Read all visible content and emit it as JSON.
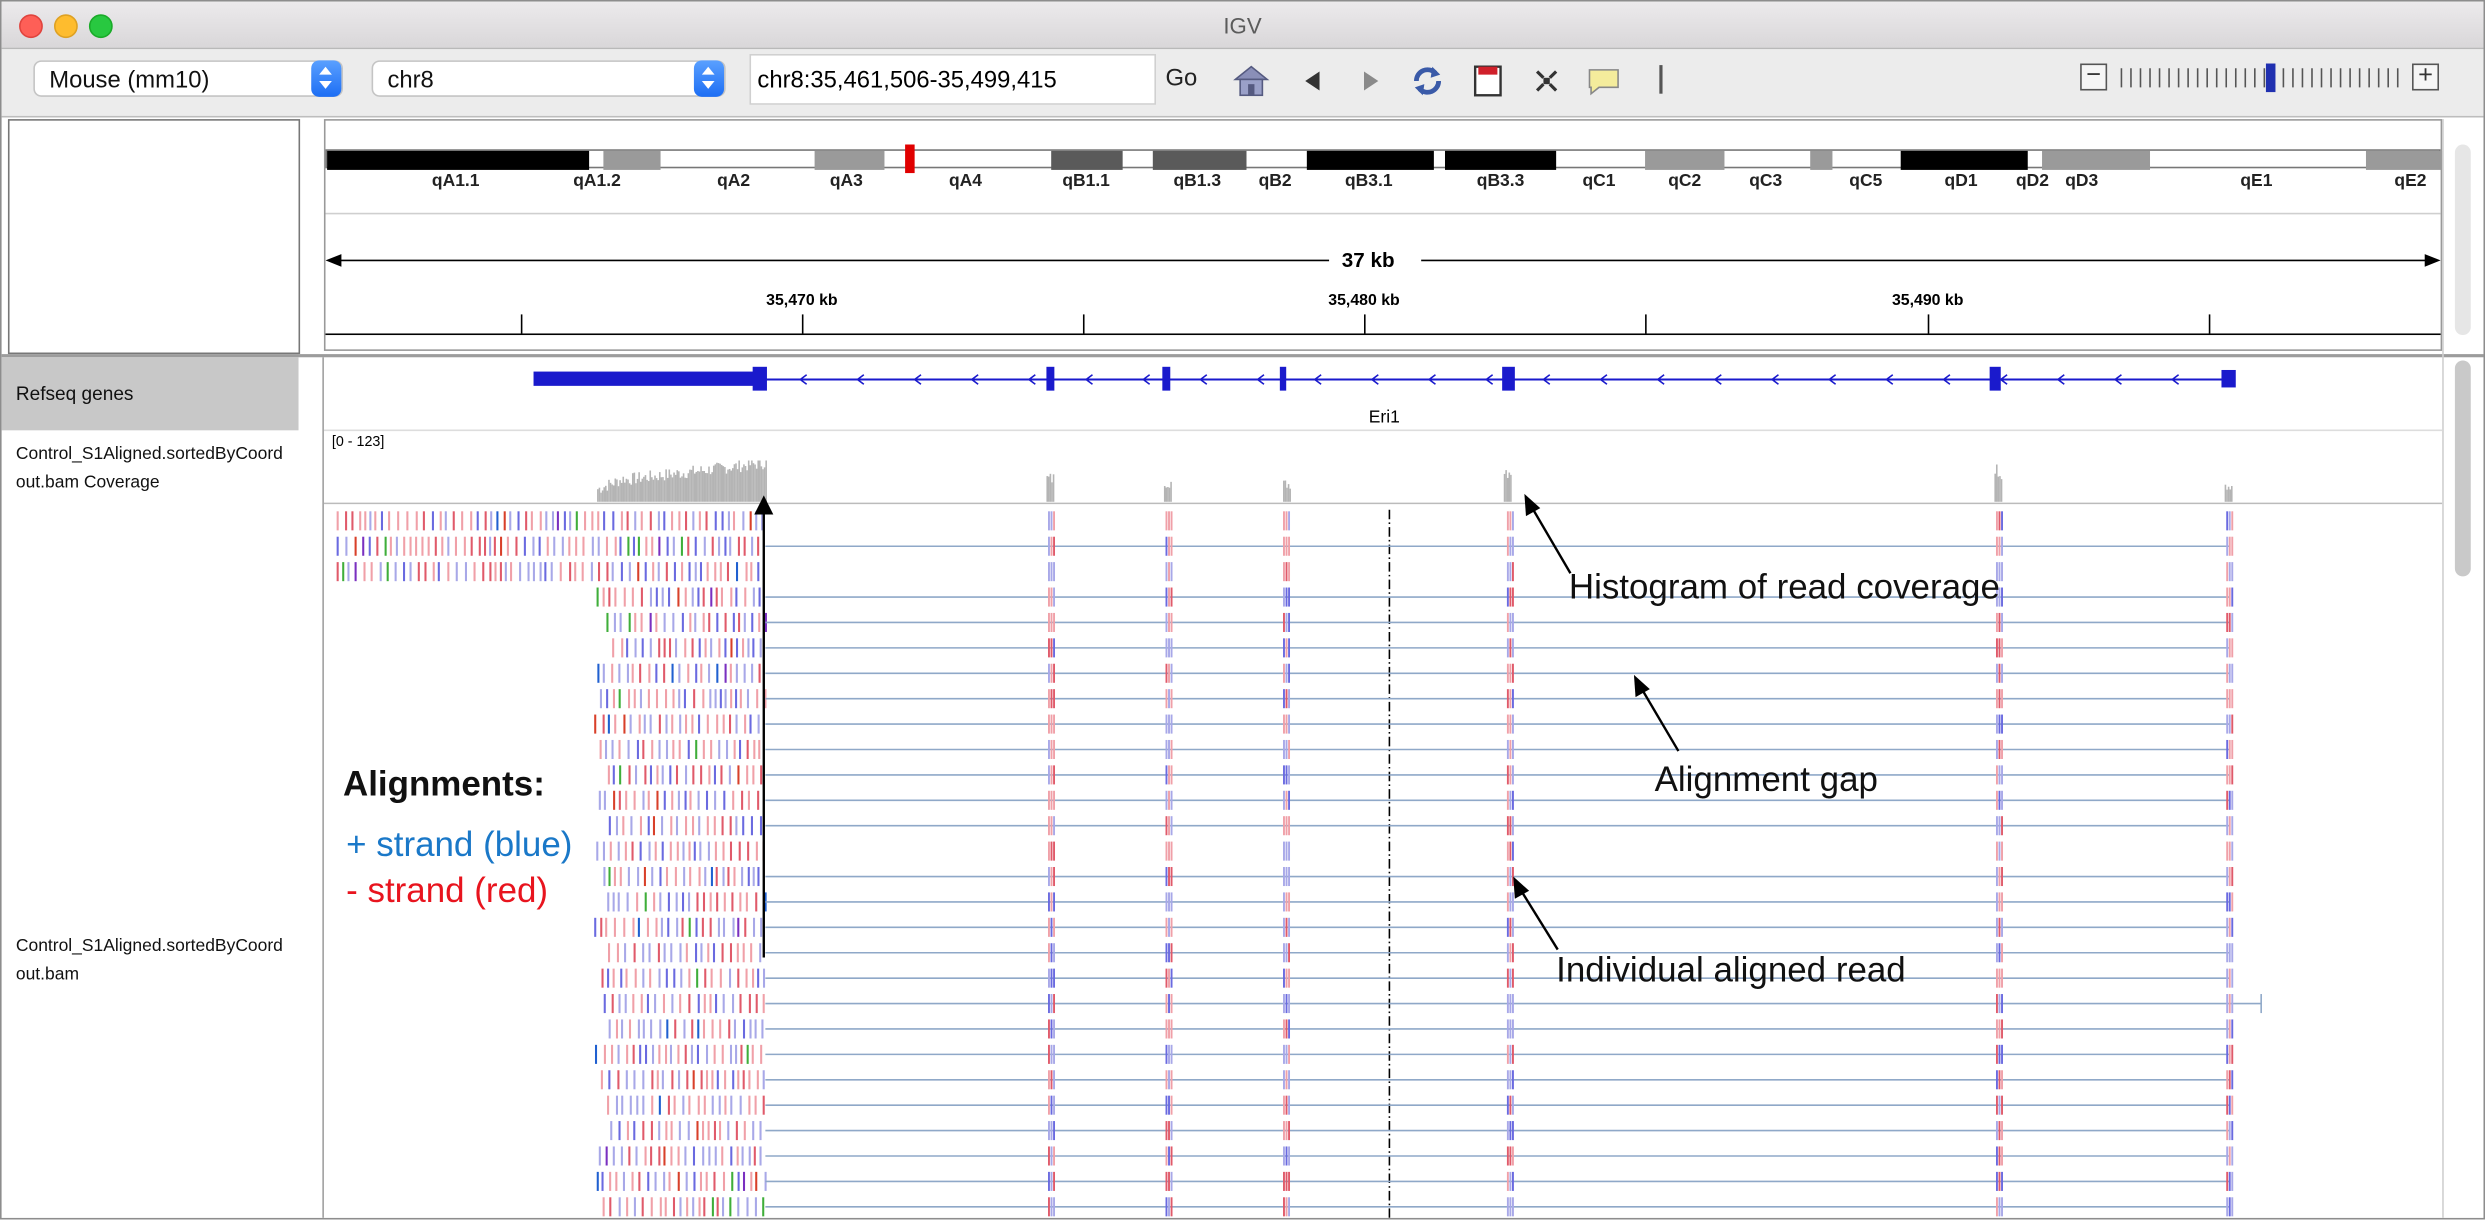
{
  "window": {
    "title": "IGV"
  },
  "toolbar": {
    "genome": "Mouse (mm10)",
    "chromosome": "chr8",
    "locus": "chr8:35,461,506-35,499,415",
    "go_label": "Go",
    "icons": [
      "home-icon",
      "back-arrow-icon",
      "forward-arrow-icon",
      "refresh-icon",
      "roi-icon",
      "resize-icon",
      "popup-text-icon"
    ],
    "zoom_out": "−",
    "zoom_in": "+"
  },
  "ideogram": {
    "bands": [
      "qA1.1",
      "qA1.2",
      "qA2",
      "qA3",
      "qA4",
      "qB1.1",
      "qB1.3",
      "qB2",
      "qB3.1",
      "qB3.3",
      "qC1",
      "qC2",
      "qC3",
      "qC5",
      "qD1",
      "qD2",
      "qD3",
      "qE1",
      "qE2"
    ]
  },
  "ruler": {
    "span": "37 kb",
    "ticks": [
      "35,470 kb",
      "35,480 kb",
      "35,490 kb"
    ]
  },
  "tracks": {
    "refseq_name": "Refseq genes",
    "gene_name": "Eri1",
    "coverage_name_line1": "Control_S1Aligned.sortedByCoord",
    "coverage_name_line2": "out.bam Coverage",
    "coverage_range": "[0 - 123]",
    "bam_name_line1": "Control_S1Aligned.sortedByCoord",
    "bam_name_line2": "out.bam"
  },
  "annotations": {
    "alignments_title": "Alignments:",
    "plus_strand": "+ strand (blue)",
    "minus_strand": "- strand (red)",
    "histogram": "Histogram of read coverage",
    "alignment_gap": "Alignment gap",
    "individual_read": "Individual aligned read"
  },
  "colors": {
    "gene": "#1a1acc",
    "coverage": "#b4b4b4",
    "intron_line": "#8fa8c8",
    "plus_strand": "#1a78c8",
    "minus_strand": "#e8141e",
    "read_red": "#f0a0a8",
    "read_blue": "#a8a8e8"
  }
}
